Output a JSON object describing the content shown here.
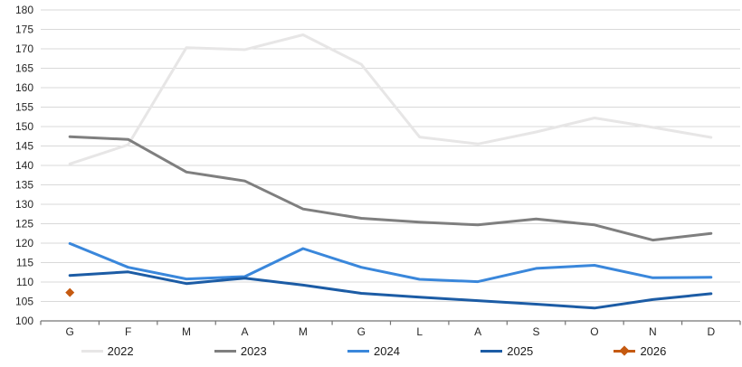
{
  "chart_data": {
    "type": "line",
    "title": "",
    "xlabel": "",
    "ylabel": "",
    "x_categories": [
      "G",
      "F",
      "M",
      "A",
      "M",
      "G",
      "L",
      "A",
      "S",
      "O",
      "N",
      "D"
    ],
    "ylim": [
      100,
      180
    ],
    "ytick_step": 5,
    "ytick_labels": [
      "100",
      "105",
      "110",
      "115",
      "120",
      "125",
      "130",
      "135",
      "140",
      "145",
      "150",
      "155",
      "160",
      "165",
      "170",
      "175",
      "180"
    ],
    "grid": "horizontal",
    "legend_position": "bottom",
    "series": [
      {
        "name": "2022",
        "color": "#E7E6E6",
        "marker": "none",
        "values": [
          140.4,
          145.3,
          170.3,
          169.8,
          173.6,
          166.0,
          147.3,
          145.5,
          148.6,
          152.2,
          149.8,
          147.2
        ]
      },
      {
        "name": "2023",
        "color": "#7F7F7F",
        "marker": "none",
        "values": [
          147.4,
          146.7,
          138.3,
          136.0,
          128.8,
          126.4,
          125.4,
          124.7,
          126.2,
          124.7,
          120.8,
          122.5
        ]
      },
      {
        "name": "2024",
        "color": "#3A87DB",
        "marker": "none",
        "values": [
          119.9,
          113.8,
          110.8,
          111.4,
          118.6,
          113.8,
          110.7,
          110.1,
          113.5,
          114.3,
          111.1,
          111.2
        ]
      },
      {
        "name": "2025",
        "color": "#1C5CA5",
        "marker": "none",
        "values": [
          111.7,
          112.6,
          109.6,
          111.0,
          109.2,
          107.1,
          106.1,
          105.2,
          104.3,
          103.3,
          105.5,
          107.0
        ]
      },
      {
        "name": "2026",
        "color": "#C55A11",
        "marker": "diamond",
        "values": [
          107.3,
          null,
          null,
          null,
          null,
          null,
          null,
          null,
          null,
          null,
          null,
          null
        ]
      }
    ]
  },
  "style_colors": {
    "gridline": "#D9D9D9",
    "axis_line": "#737373",
    "tick": "#737373",
    "axis_text": "#262626",
    "background": "#FFFFFF"
  }
}
